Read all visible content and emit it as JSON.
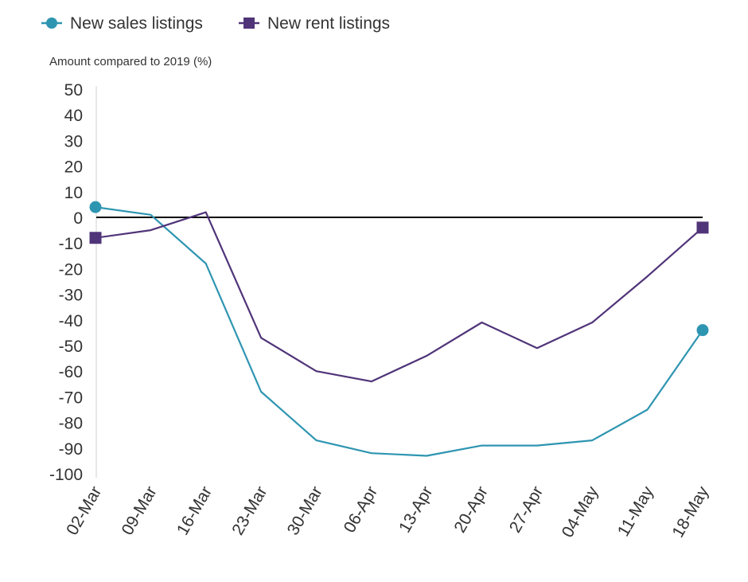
{
  "chart_data": {
    "type": "line",
    "title": "",
    "ylabel": "Amount compared to 2019 (%)",
    "xlabel": "",
    "categories": [
      "02-Mar",
      "09-Mar",
      "16-Mar",
      "23-Mar",
      "30-Mar",
      "06-Apr",
      "13-Apr",
      "20-Apr",
      "27-Apr",
      "04-May",
      "11-May",
      "18-May"
    ],
    "ylim": [
      -100,
      50
    ],
    "yticks": [
      50,
      40,
      30,
      20,
      10,
      0,
      -10,
      -20,
      -30,
      -40,
      -50,
      -60,
      -70,
      -80,
      -90,
      -100
    ],
    "grid": false,
    "legend_position": "top-left",
    "series": [
      {
        "name": "New sales listings",
        "color": "#2e95b1",
        "marker": "circle",
        "values": [
          4,
          1,
          -18,
          -68,
          -87,
          -92,
          -93,
          -89,
          -89,
          -87,
          -75,
          -44
        ]
      },
      {
        "name": "New rent listings",
        "color": "#503479",
        "marker": "square",
        "values": [
          -8,
          -5,
          2,
          -47,
          -60,
          -64,
          -54,
          -41,
          -51,
          -41,
          -23,
          -4
        ]
      }
    ]
  }
}
